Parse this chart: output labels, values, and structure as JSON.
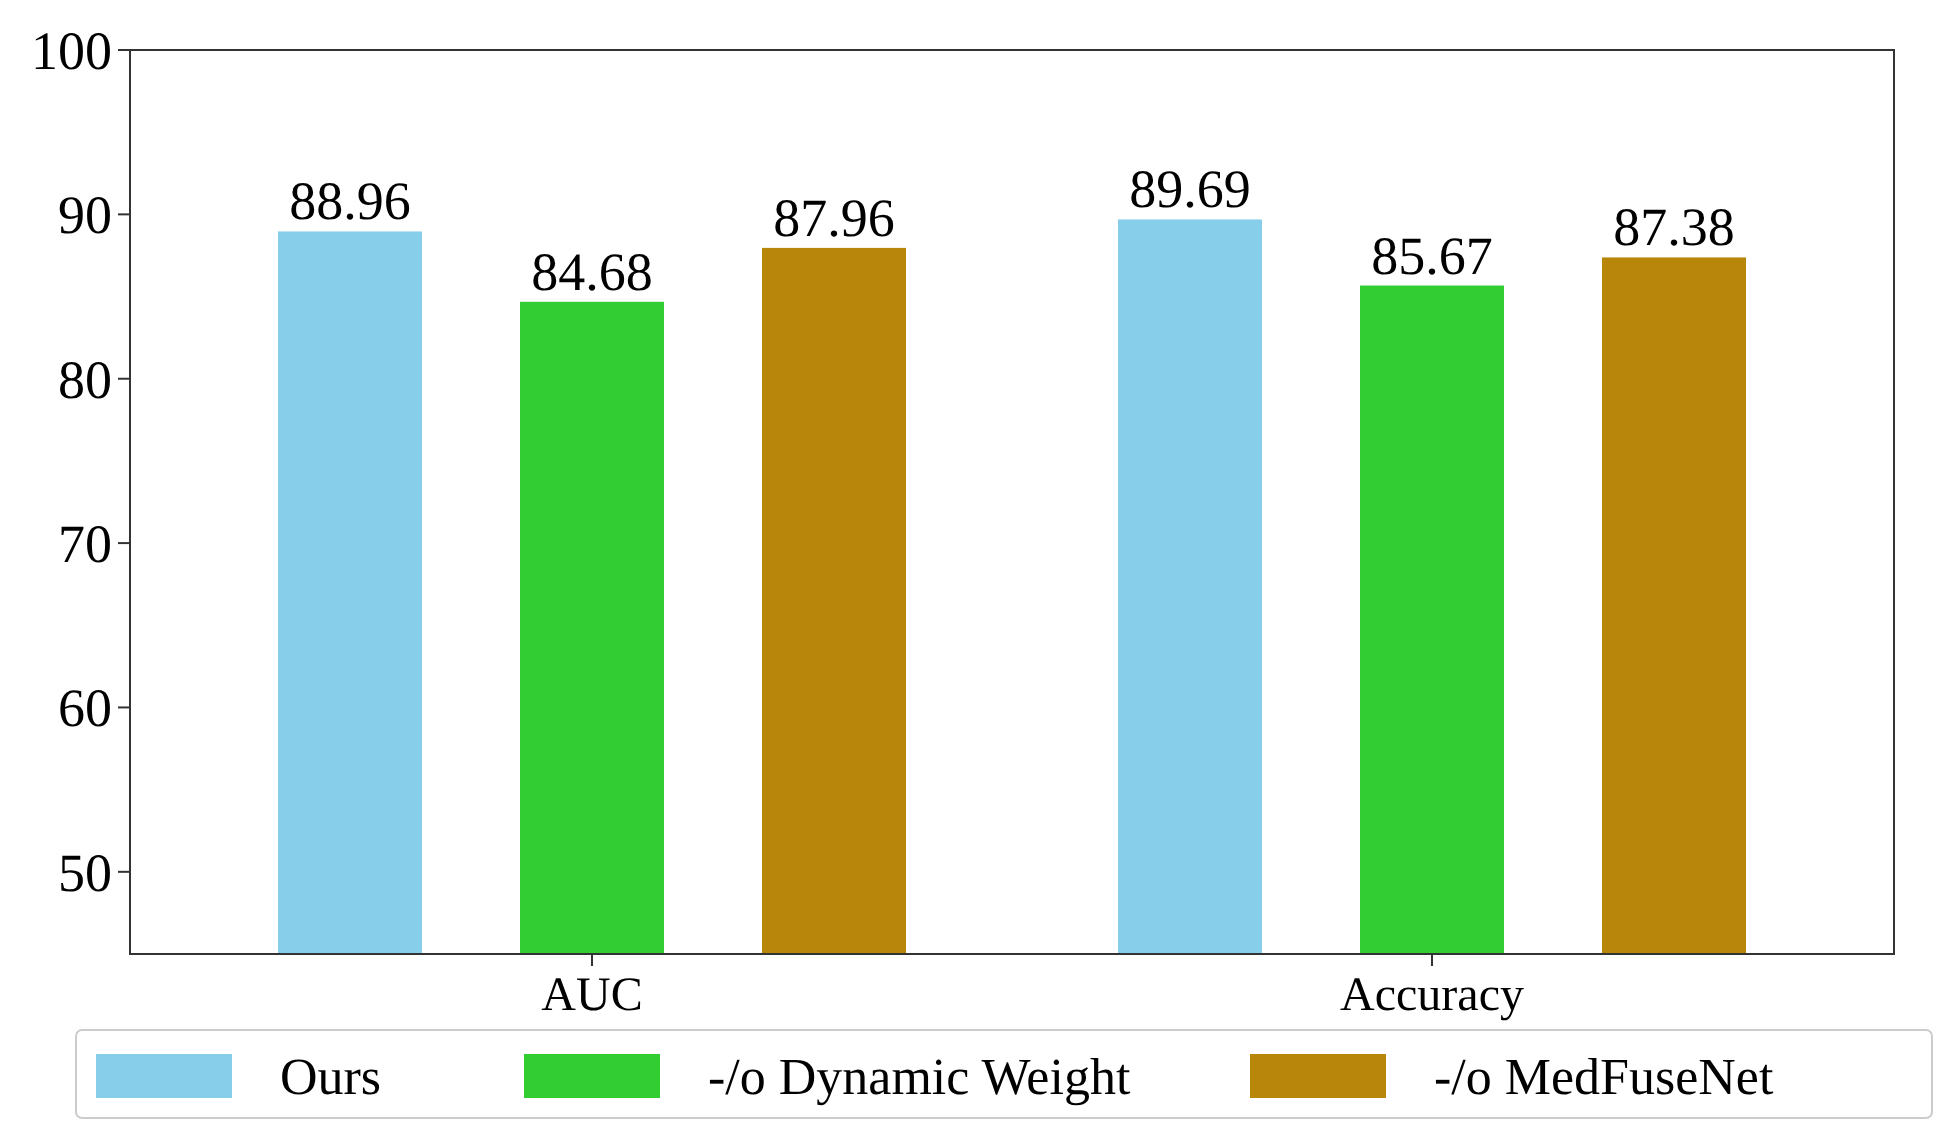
{
  "chart_data": {
    "type": "bar",
    "categories": [
      "AUC",
      "Accuracy"
    ],
    "series": [
      {
        "name": "Ours",
        "color": "#87ceeb",
        "values": [
          88.96,
          89.69
        ]
      },
      {
        "name": "-/o Dynamic Weight",
        "color": "#32cd32",
        "values": [
          84.68,
          85.67
        ]
      },
      {
        "name": "-/o MedFuseNet",
        "color": "#b8860b",
        "values": [
          87.96,
          87.38
        ]
      }
    ],
    "ylim": [
      45,
      100
    ],
    "yticks": [
      50,
      60,
      70,
      80,
      90,
      100
    ],
    "data_labels": true,
    "legend": "bottom",
    "grid": false
  }
}
